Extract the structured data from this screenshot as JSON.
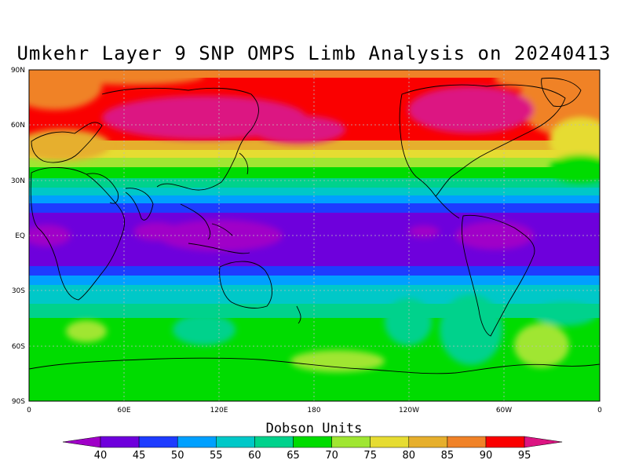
{
  "title": "Umkehr Layer 9 SNP OMPS Limb Analysis on 20240413",
  "map": {
    "lat_ticks": [
      "90N",
      "60N",
      "30N",
      "EQ",
      "30S",
      "60S",
      "90S"
    ],
    "lon_ticks": [
      "0",
      "60E",
      "120E",
      "180",
      "120W",
      "60W",
      "0"
    ]
  },
  "colorbar": {
    "title": "Dobson Units",
    "labels": [
      "40",
      "45",
      "50",
      "55",
      "60",
      "65",
      "70",
      "75",
      "80",
      "85",
      "90",
      "95"
    ],
    "colors": [
      "#a000c8",
      "#6e00dc",
      "#1e3cff",
      "#00a0ff",
      "#00c8c8",
      "#00d28c",
      "#00dc00",
      "#a0e632",
      "#e6dc32",
      "#e6af2d",
      "#f08228",
      "#fa0000",
      "#dc1482"
    ]
  }
}
